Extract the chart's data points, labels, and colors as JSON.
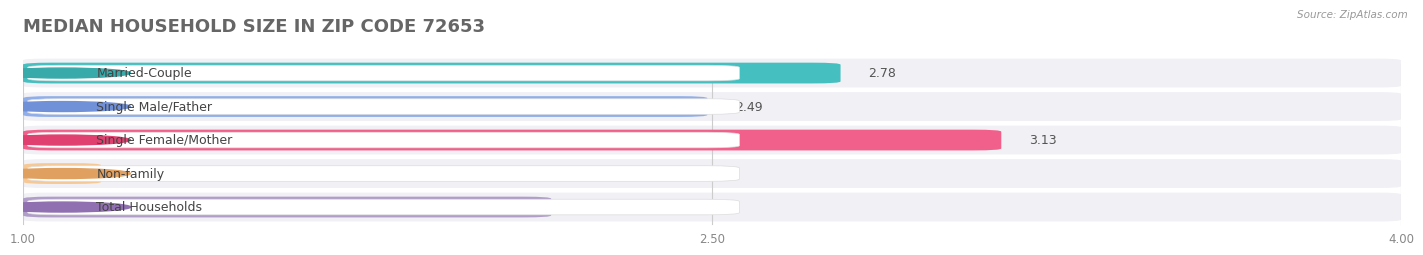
{
  "title": "MEDIAN HOUSEHOLD SIZE IN ZIP CODE 72653",
  "source": "Source: ZipAtlas.com",
  "categories": [
    "Married-Couple",
    "Single Male/Father",
    "Single Female/Mother",
    "Non-family",
    "Total Households"
  ],
  "values": [
    2.78,
    2.49,
    3.13,
    1.17,
    2.15
  ],
  "bar_colors": [
    "#45BFBF",
    "#90AFEA",
    "#F0608A",
    "#F5C896",
    "#B09EC8"
  ],
  "dot_colors": [
    "#38AAAA",
    "#7090D8",
    "#E04070",
    "#E0A060",
    "#9070B0"
  ],
  "xlim_min": 1.0,
  "xlim_max": 4.0,
  "x_ticks": [
    1.0,
    2.5,
    4.0
  ],
  "x_tick_labels": [
    "1.00",
    "2.50",
    "4.00"
  ],
  "background_color": "#ffffff",
  "row_bg_color": "#f0f0f5",
  "title_fontsize": 13,
  "label_fontsize": 9,
  "value_fontsize": 9,
  "bar_height": 0.62
}
